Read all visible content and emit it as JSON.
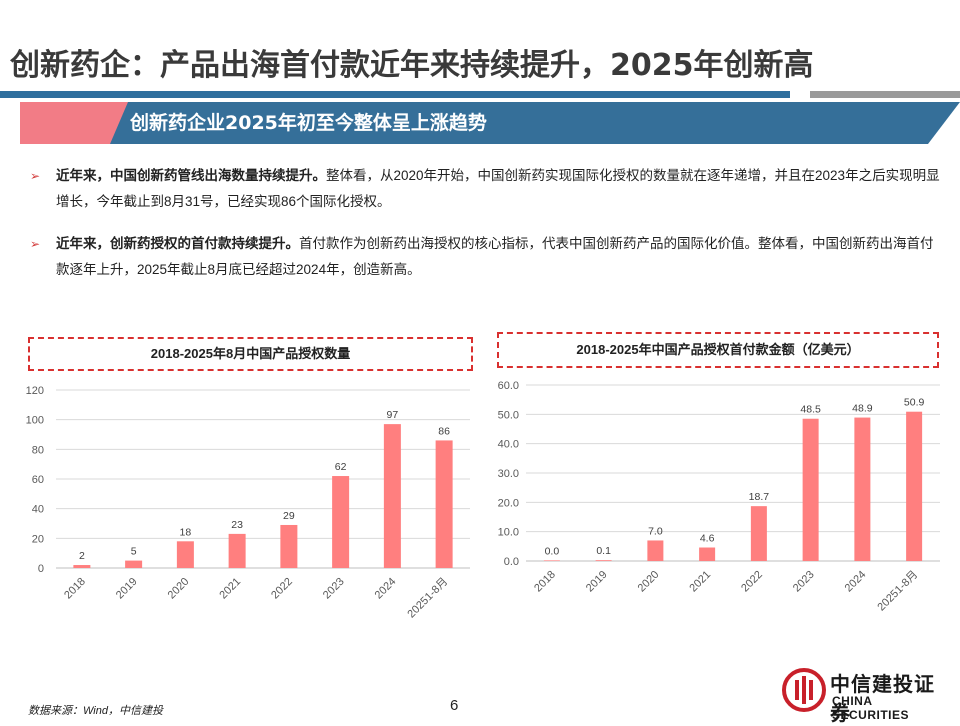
{
  "page": {
    "title": "创新药企：产品出海首付款近年来持续提升，2025年创新高",
    "banner": "创新药企业2025年初至今整体呈上涨趋势",
    "bullets": [
      {
        "bold": "近年来，中国创新药管线出海数量持续提升。",
        "text": "整体看，从2020年开始，中国创新药实现国际化授权的数量就在逐年递增，并且在2023年之后实现明显增长，今年截止到8月31号，已经实现86个国际化授权。"
      },
      {
        "bold": "近年来，创新药授权的首付款持续提升。",
        "text": "首付款作为创新药出海授权的核心指标，代表中国创新药产品的国际化价值。整体看，中国创新药出海首付款逐年上升，2025年截止8月底已经超过2024年，创造新高。"
      }
    ],
    "footer_source": "数据来源：Wind，中信建投",
    "page_number": "6",
    "logo_cn": "中信建投证券",
    "logo_en": "CHINA SECURITIES",
    "colors": {
      "bar": "#ff7f7f",
      "banner_blue": "#356f99",
      "banner_pink": "#f27c86",
      "frame_red": "#d9302f"
    }
  },
  "chart_data": [
    {
      "type": "bar",
      "title": "2018-2025年8月中国产品授权数量",
      "categories": [
        "2018",
        "2019",
        "2020",
        "2021",
        "2022",
        "2023",
        "2024",
        "20251-8月"
      ],
      "values": [
        2,
        5,
        18,
        23,
        29,
        62,
        97,
        86
      ],
      "labels": [
        "2",
        "5",
        "18",
        "23",
        "29",
        "62",
        "97",
        "86"
      ],
      "ylim": [
        0,
        120
      ],
      "yticks": [
        0,
        20,
        40,
        60,
        80,
        100,
        120
      ],
      "ytick_labels": [
        "0",
        "20",
        "40",
        "60",
        "80",
        "100",
        "120"
      ],
      "grid": true
    },
    {
      "type": "bar",
      "title": "2018-2025年中国产品授权首付款金额（亿美元）",
      "categories": [
        "2018",
        "2019",
        "2020",
        "2021",
        "2022",
        "2023",
        "2024",
        "20251-8月"
      ],
      "values": [
        0.0,
        0.1,
        7.0,
        4.6,
        18.7,
        48.5,
        48.9,
        50.9
      ],
      "labels": [
        "0.0",
        "0.1",
        "7.0",
        "4.6",
        "18.7",
        "48.5",
        "48.9",
        "50.9"
      ],
      "ylim": [
        0,
        60
      ],
      "yticks": [
        0,
        10,
        20,
        30,
        40,
        50,
        60
      ],
      "ytick_labels": [
        "0.0",
        "10.0",
        "20.0",
        "30.0",
        "40.0",
        "50.0",
        "60.0"
      ],
      "grid": true
    }
  ]
}
